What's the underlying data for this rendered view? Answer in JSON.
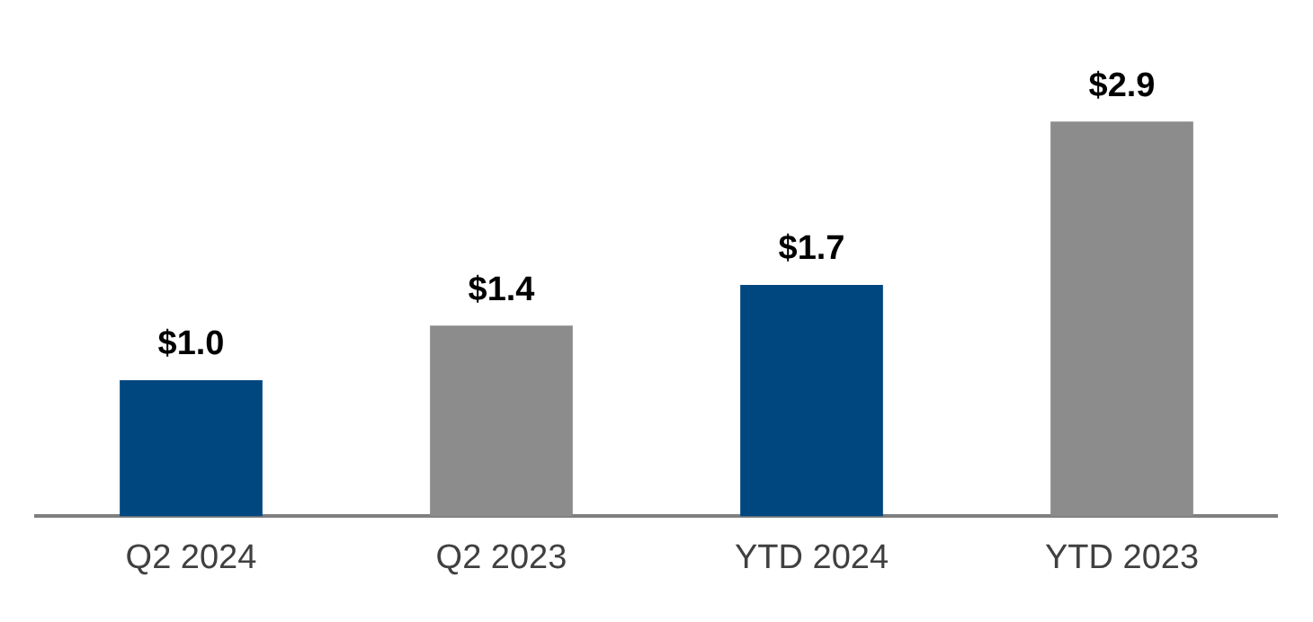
{
  "chart_data": {
    "type": "bar",
    "categories": [
      "Q2 2024",
      "Q2 2023",
      "YTD 2024",
      "YTD 2023"
    ],
    "values": [
      1.0,
      1.4,
      1.7,
      2.9
    ],
    "colors": [
      "#00467f",
      "#8c8c8c",
      "#00467f",
      "#8c8c8c"
    ],
    "value_labels": [
      "$1.0",
      "$1.4",
      "$1.7",
      "$2.9"
    ],
    "grid": false,
    "legend": false
  }
}
